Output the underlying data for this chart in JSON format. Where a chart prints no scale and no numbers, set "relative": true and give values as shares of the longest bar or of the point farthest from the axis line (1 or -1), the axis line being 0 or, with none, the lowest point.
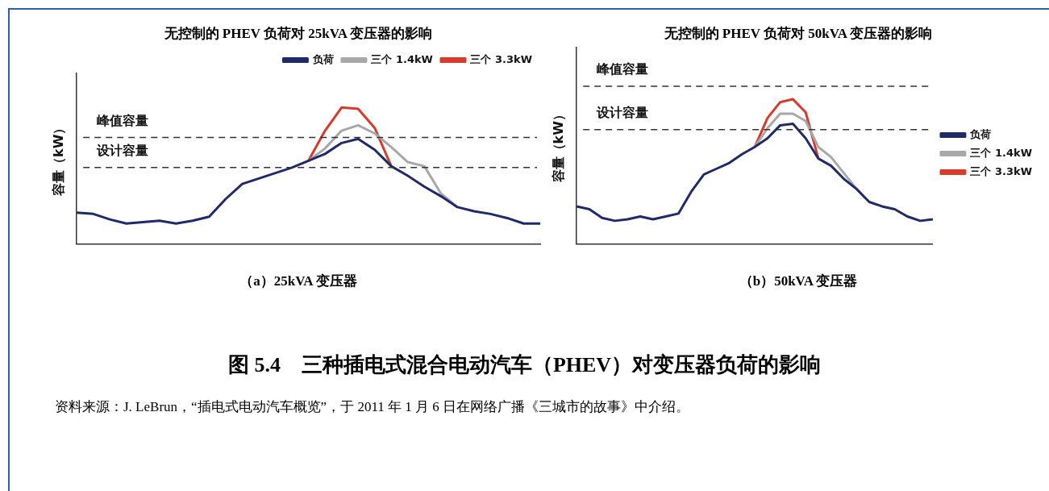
{
  "chart_data": [
    {
      "type": "line",
      "title": "无控制的 PHEV 负荷对 25kVA 变压器的影响",
      "ylabel": "容量（kW）",
      "relative": true,
      "legend": "top right",
      "marker": "none",
      "line_style": "solid",
      "grid": false,
      "categories": [
        null,
        null,
        null,
        null,
        null,
        null,
        null,
        null,
        null,
        null,
        null,
        null,
        null,
        null,
        null,
        null,
        null,
        null,
        null,
        null,
        null,
        null,
        null,
        null,
        null,
        null,
        null,
        null,
        null
      ],
      "series": [
        {
          "name": "负荷",
          "color": "#1f2a6b",
          "values": [
            0.23,
            0.22,
            0.18,
            0.15,
            0.16,
            0.17,
            0.15,
            0.17,
            0.2,
            0.33,
            0.44,
            0.48,
            0.52,
            0.56,
            0.61,
            0.66,
            0.74,
            0.77,
            0.69,
            0.57,
            0.5,
            0.42,
            0.35,
            0.27,
            0.24,
            0.22,
            0.19,
            0.15,
            0.15
          ]
        },
        {
          "name": "三个 1.4kW",
          "color": "#a8a8a8",
          "values": [
            null,
            null,
            null,
            null,
            null,
            null,
            null,
            null,
            null,
            null,
            null,
            null,
            null,
            null,
            0.61,
            0.7,
            0.83,
            0.87,
            0.81,
            0.71,
            0.6,
            0.57,
            0.37,
            0.27,
            null,
            null,
            null,
            null,
            null
          ]
        },
        {
          "name": "三个 3.3kW",
          "color": "#d93a2a",
          "values": [
            null,
            null,
            null,
            null,
            null,
            null,
            null,
            null,
            null,
            null,
            null,
            null,
            null,
            null,
            0.61,
            0.83,
            1,
            0.99,
            0.85,
            0.57,
            null,
            null,
            null,
            null,
            null,
            null,
            null,
            null,
            null
          ]
        }
      ],
      "ref_lines": [
        {
          "axis": "y",
          "value": 0.78,
          "label": "峰值容量",
          "color": "#333333",
          "line_style": "dashed"
        },
        {
          "axis": "y",
          "value": 0.56,
          "label": "设计容量",
          "color": "#333333",
          "line_style": "dashed"
        }
      ],
      "annotations": [
        "（a）25kVA 变压器"
      ]
    },
    {
      "type": "line",
      "title": "无控制的 PHEV 负荷对 50kVA 变压器的影响",
      "ylabel": "容量（kW）",
      "relative": true,
      "legend": "right",
      "marker": "none",
      "line_style": "solid",
      "grid": false,
      "categories": [
        null,
        null,
        null,
        null,
        null,
        null,
        null,
        null,
        null,
        null,
        null,
        null,
        null,
        null,
        null,
        null,
        null,
        null,
        null,
        null,
        null,
        null,
        null,
        null,
        null,
        null,
        null,
        null,
        null
      ],
      "series": [
        {
          "name": "负荷",
          "color": "#1f2a6b",
          "values": [
            0.26,
            0.24,
            0.18,
            0.16,
            0.17,
            0.19,
            0.17,
            0.19,
            0.21,
            0.36,
            0.48,
            0.52,
            0.56,
            0.62,
            0.67,
            0.73,
            0.82,
            0.83,
            0.73,
            0.59,
            0.54,
            0.45,
            0.38,
            0.29,
            0.26,
            0.24,
            0.19,
            0.16,
            0.17
          ]
        },
        {
          "name": "三个 1.4kW",
          "color": "#a8a8a8",
          "values": [
            null,
            null,
            null,
            null,
            null,
            null,
            null,
            null,
            null,
            null,
            null,
            null,
            null,
            null,
            0.67,
            0.8,
            0.9,
            0.9,
            0.85,
            0.67,
            0.6,
            0.49,
            0.38,
            null,
            null,
            null,
            null,
            null,
            null
          ]
        },
        {
          "name": "三个 3.3kW",
          "color": "#d93a2a",
          "values": [
            null,
            null,
            null,
            null,
            null,
            null,
            null,
            null,
            null,
            null,
            null,
            null,
            null,
            null,
            0.67,
            0.87,
            0.98,
            1,
            0.91,
            0.59,
            null,
            null,
            null,
            null,
            null,
            null,
            null,
            null,
            null
          ]
        }
      ],
      "ref_lines": [
        {
          "axis": "y",
          "value": 1.09,
          "label": "峰值容量",
          "color": "#333333",
          "line_style": "dashed"
        },
        {
          "axis": "y",
          "value": 0.79,
          "label": "设计容量",
          "color": "#333333",
          "line_style": "dashed"
        }
      ],
      "annotations": [
        "（b）50kVA 变压器"
      ]
    },
    {
      "type": "other",
      "title": "图 5.4　三种插电式混合电动汽车（PHEV）对变压器负荷的影响",
      "annotations": [
        "资料来源：J. LeBrun，“插电式电动汽车概览”，于 2011 年 1 月 6 日在网络广播《三城市的故事》中介绍。"
      ]
    }
  ]
}
